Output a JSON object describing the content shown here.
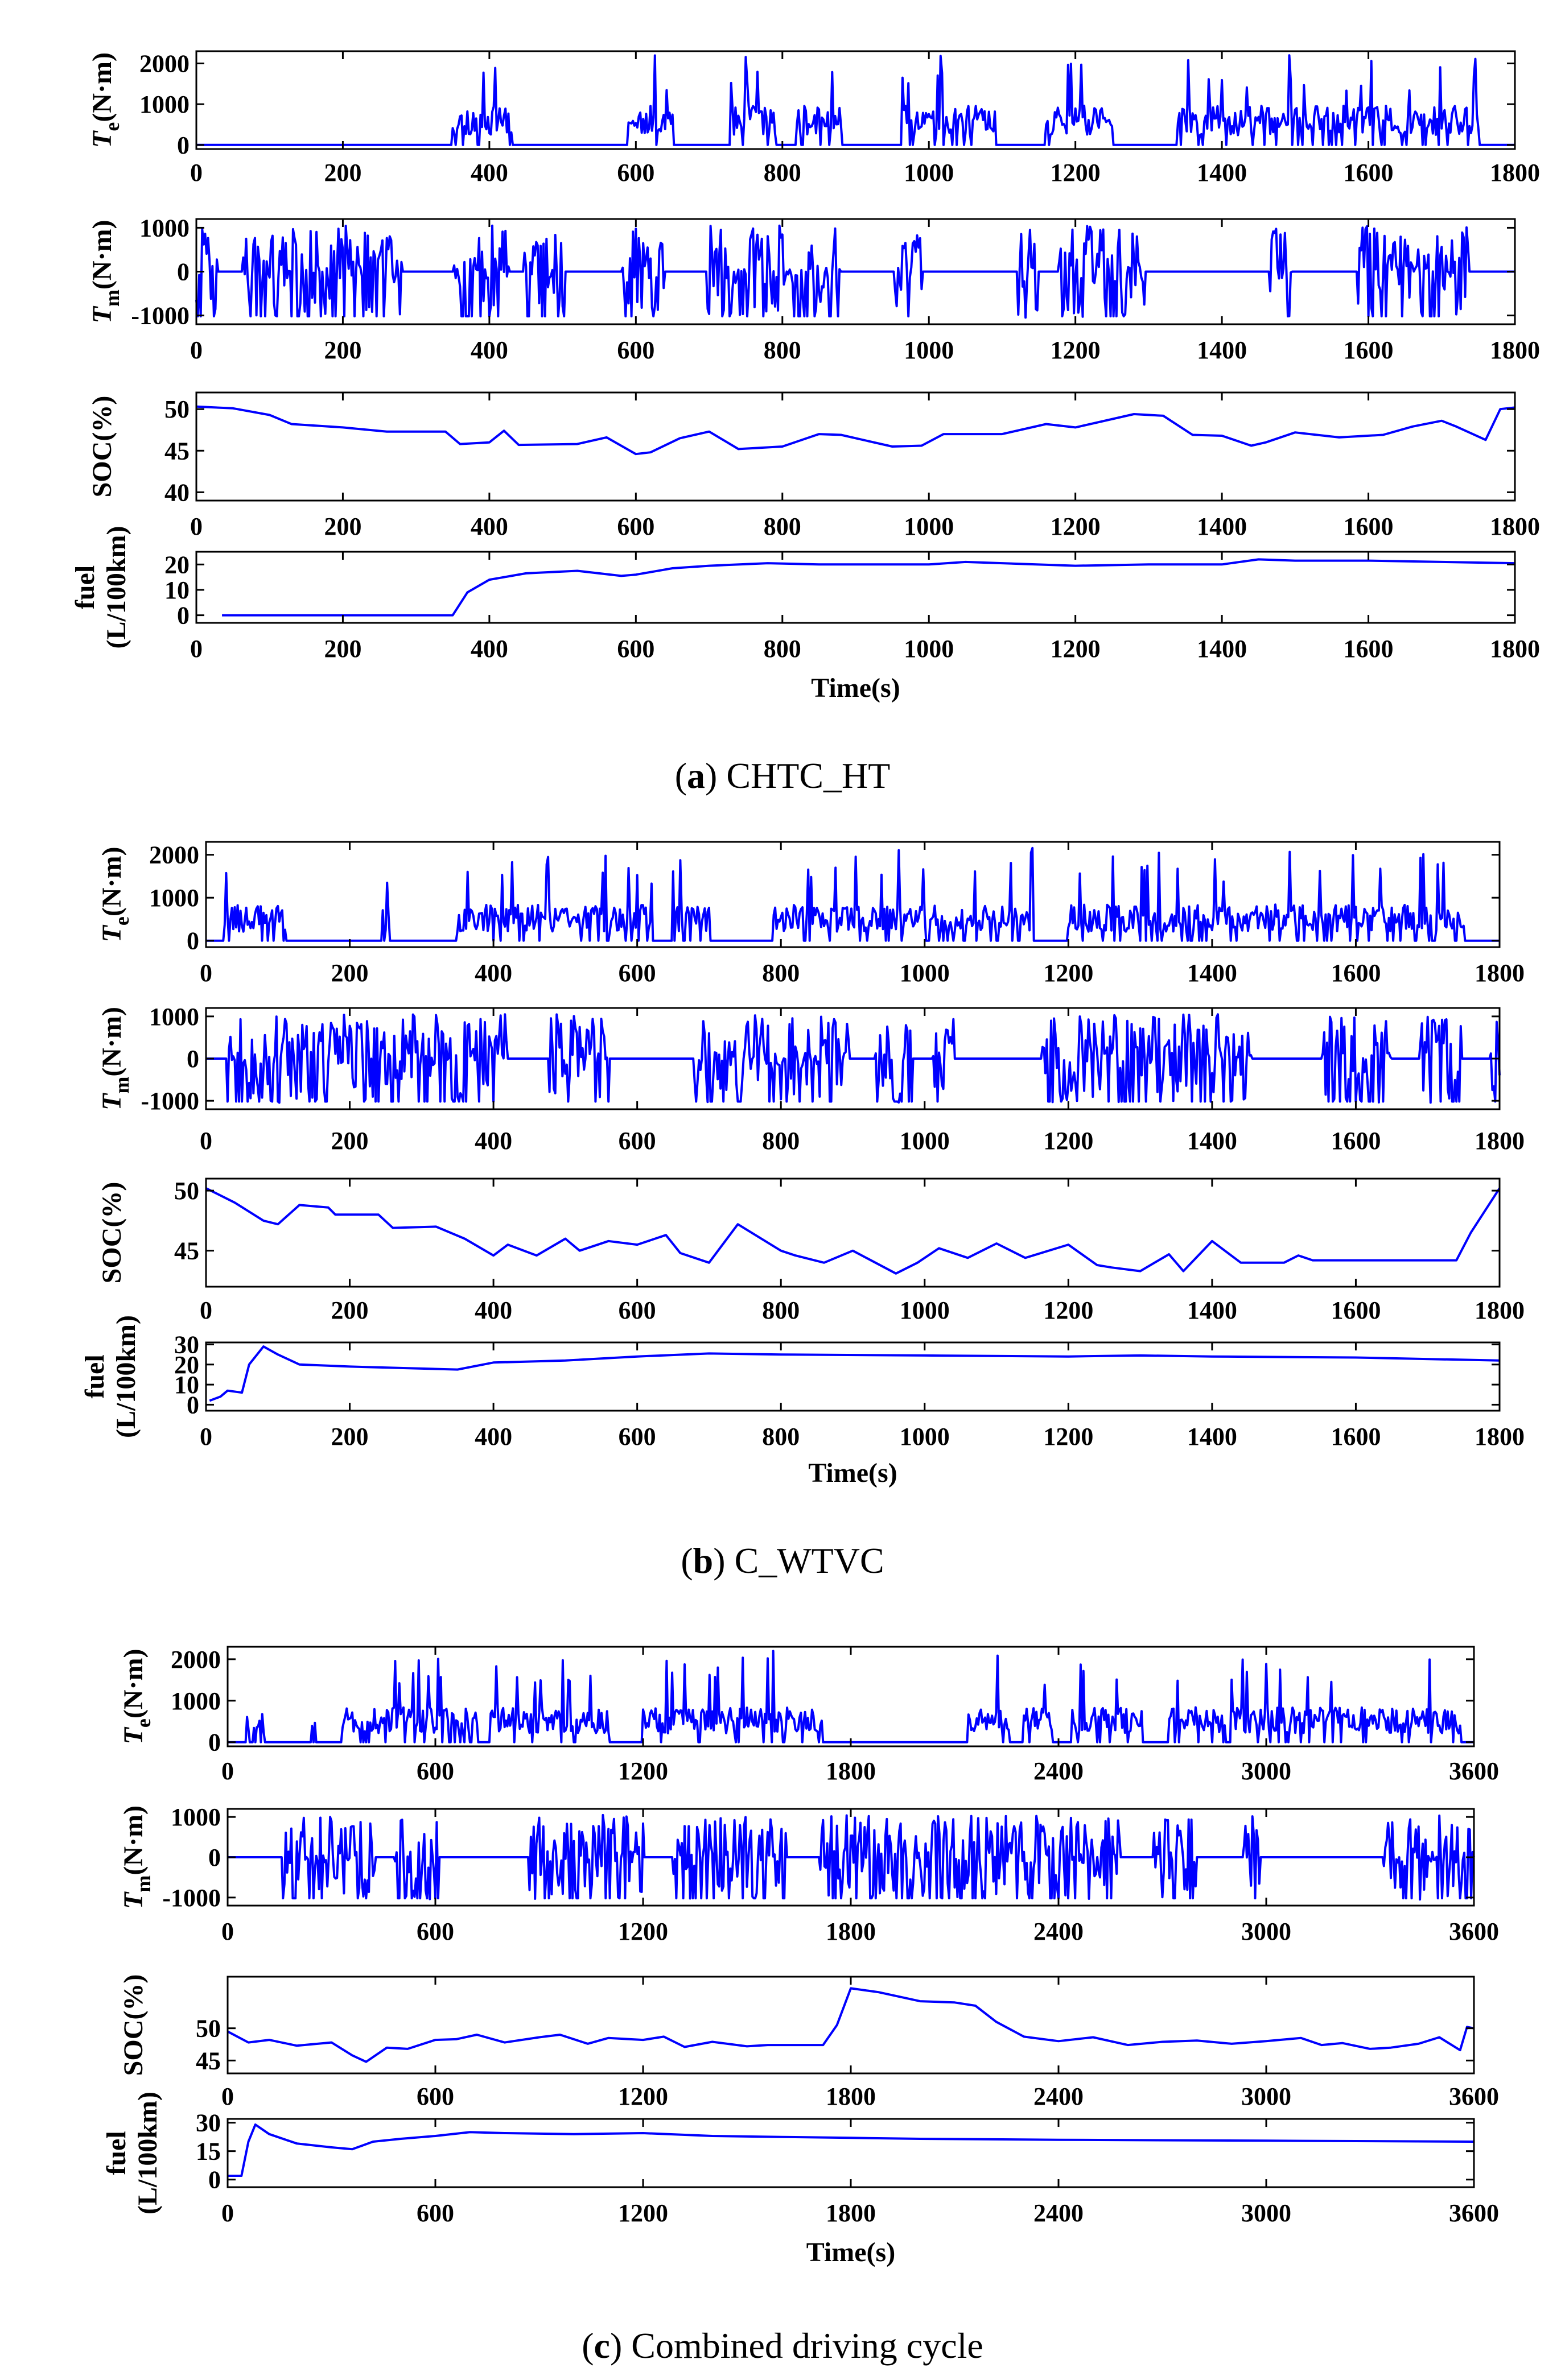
{
  "chart_data": [
    {
      "type": "line",
      "caption": {
        "letter": "a",
        "title": "CHTC_HT"
      },
      "xlabel": "Time(s)",
      "xlim": [
        0,
        1800
      ],
      "xticks": [
        0,
        200,
        400,
        600,
        800,
        1000,
        1200,
        1400,
        1600,
        1800
      ],
      "subplots": [
        {
          "id": "Te",
          "ylabel": "T",
          "ylabel_sub": "e",
          "ylabel_unit": "(N·m)",
          "ylim": [
            -100,
            2300
          ],
          "yticks": [
            0,
            1000,
            2000
          ],
          "series": [
            {
              "name": "Te",
              "pattern": "engine",
              "segments": [
                [
                  350,
                  430
                ],
                [
                  590,
                  650
                ],
                [
                  730,
                  790
                ],
                [
                  820,
                  880
                ],
                [
                  960,
                  1090
                ],
                [
                  1160,
                  1250
                ],
                [
                  1340,
                  1750
                ]
              ],
              "base": 0,
              "peak": 2200,
              "typical": 800,
              "seed": 11
            }
          ]
        },
        {
          "id": "Tm",
          "ylabel": "T",
          "ylabel_sub": "m",
          "ylabel_unit": "(N·m)",
          "ylim": [
            -1200,
            1200
          ],
          "yticks": [
            -1000,
            0,
            1000
          ],
          "series": [
            {
              "name": "Tm",
              "pattern": "motor",
              "peak": 1050,
              "seed": 23
            }
          ]
        },
        {
          "id": "SOC",
          "ylabel": "SOC(%)",
          "ylim": [
            39,
            52
          ],
          "yticks": [
            40,
            45,
            50
          ],
          "series": [
            {
              "name": "SOC",
              "pattern": "points",
              "x": [
                0,
                50,
                100,
                130,
                200,
                260,
                340,
                360,
                400,
                420,
                440,
                520,
                560,
                600,
                620,
                660,
                700,
                740,
                800,
                850,
                880,
                950,
                990,
                1020,
                1100,
                1160,
                1200,
                1280,
                1320,
                1360,
                1400,
                1440,
                1460,
                1500,
                1560,
                1620,
                1660,
                1700,
                1720,
                1760,
                1780,
                1800
              ],
              "y": [
                50.3,
                50.1,
                49.3,
                48.2,
                47.8,
                47.3,
                47.3,
                45.8,
                46.0,
                47.4,
                45.7,
                45.8,
                46.6,
                44.6,
                44.8,
                46.5,
                47.3,
                45.2,
                45.5,
                47.0,
                46.9,
                45.5,
                45.6,
                47.0,
                47.0,
                48.2,
                47.8,
                49.4,
                49.2,
                46.9,
                46.8,
                45.6,
                46.0,
                47.2,
                46.6,
                46.9,
                47.9,
                48.6,
                47.9,
                46.3,
                50.0,
                50.2
              ]
            }
          ]
        },
        {
          "id": "fuel",
          "ylabel": "fuel",
          "ylabel2": "(L/100km)",
          "ylim": [
            -3,
            25
          ],
          "yticks": [
            0,
            10,
            20
          ],
          "series": [
            {
              "name": "fuel",
              "pattern": "points",
              "x": [
                35,
                350,
                370,
                400,
                450,
                520,
                580,
                600,
                650,
                700,
                780,
                850,
                1000,
                1050,
                1200,
                1300,
                1400,
                1450,
                1500,
                1600,
                1700,
                1800
              ],
              "y": [
                0,
                0,
                9,
                14,
                16.5,
                17.5,
                15.5,
                16,
                18.5,
                19.5,
                20.5,
                20,
                20,
                21,
                19.5,
                20,
                20,
                22,
                21.5,
                21.5,
                21,
                20.5
              ]
            }
          ]
        }
      ]
    },
    {
      "type": "line",
      "caption": {
        "letter": "b",
        "title": "C_WTVC"
      },
      "xlabel": "Time(s)",
      "xlim": [
        0,
        1800
      ],
      "xticks": [
        0,
        200,
        400,
        600,
        800,
        1000,
        1200,
        1400,
        1600,
        1800
      ],
      "subplots": [
        {
          "id": "Te",
          "ylabel": "T",
          "ylabel_sub": "e",
          "ylabel_unit": "(N·m)",
          "ylim": [
            -150,
            2300
          ],
          "yticks": [
            0,
            1000,
            2000
          ],
          "series": [
            {
              "name": "Te",
              "pattern": "engine",
              "segments": [
                [
                  25,
                  110
                ],
                [
                  245,
                  255
                ],
                [
                  350,
                  620
                ],
                [
                  650,
                  700
                ],
                [
                  790,
                  1150
                ],
                [
                  1200,
                  1750
                ]
              ],
              "base": 0,
              "peak": 2200,
              "typical": 700,
              "seed": 37
            }
          ]
        },
        {
          "id": "Tm",
          "ylabel": "T",
          "ylabel_sub": "m",
          "ylabel_unit": "(N·m)",
          "ylim": [
            -1200,
            1200
          ],
          "yticks": [
            -1000,
            0,
            1000
          ],
          "series": [
            {
              "name": "Tm",
              "pattern": "motor",
              "peak": 1050,
              "seed": 41
            }
          ]
        },
        {
          "id": "SOC",
          "ylabel": "SOC(%)",
          "ylim": [
            42,
            51
          ],
          "yticks": [
            45,
            50
          ],
          "series": [
            {
              "name": "SOC",
              "pattern": "points",
              "x": [
                0,
                40,
                80,
                100,
                130,
                170,
                180,
                240,
                260,
                320,
                360,
                400,
                420,
                460,
                500,
                520,
                560,
                600,
                640,
                660,
                700,
                740,
                800,
                820,
                860,
                900,
                960,
                990,
                1020,
                1060,
                1100,
                1140,
                1200,
                1240,
                1260,
                1300,
                1340,
                1360,
                1400,
                1440,
                1500,
                1520,
                1540,
                1740,
                1760,
                1800
              ],
              "y": [
                50.2,
                49.0,
                47.5,
                47.2,
                48.8,
                48.6,
                48.0,
                48.0,
                46.9,
                47.0,
                46.0,
                44.6,
                45.5,
                44.6,
                46.0,
                45.0,
                45.8,
                45.5,
                46.3,
                44.8,
                44.0,
                47.2,
                45.0,
                44.6,
                44.0,
                45.0,
                43.1,
                44.0,
                45.2,
                44.4,
                45.6,
                44.4,
                45.5,
                43.8,
                43.6,
                43.3,
                44.7,
                43.3,
                45.8,
                44.0,
                44.0,
                44.6,
                44.2,
                44.2,
                46.5,
                50.2
              ]
            }
          ]
        },
        {
          "id": "fuel",
          "ylabel": "fuel",
          "ylabel2": "(L/100km)",
          "ylim": [
            -3,
            31
          ],
          "yticks": [
            0,
            10,
            20,
            30
          ],
          "series": [
            {
              "name": "fuel",
              "pattern": "points",
              "x": [
                5,
                20,
                30,
                50,
                60,
                80,
                100,
                130,
                200,
                300,
                350,
                400,
                500,
                600,
                700,
                800,
                1000,
                1200,
                1300,
                1400,
                1600,
                1800
              ],
              "y": [
                2,
                4,
                7,
                6,
                20,
                29,
                25,
                20,
                19,
                18,
                17.5,
                21,
                22,
                24,
                25.5,
                25,
                24.5,
                24,
                24.5,
                24,
                23.5,
                22
              ]
            }
          ]
        }
      ]
    },
    {
      "type": "line",
      "caption": {
        "letter": "c",
        "title": "Combined driving cycle"
      },
      "xlabel": "Time(s)",
      "xlim": [
        0,
        3600
      ],
      "xticks": [
        0,
        600,
        1200,
        1800,
        2400,
        3000,
        3600
      ],
      "subplots": [
        {
          "id": "Te",
          "ylabel": "T",
          "ylabel_sub": "e",
          "ylabel_unit": "(N·m)",
          "ylim": [
            -100,
            2300
          ],
          "yticks": [
            0,
            1000,
            2000
          ],
          "series": [
            {
              "name": "Te",
              "pattern": "engine",
              "segments": [
                [
                  50,
                  110
                ],
                [
                  240,
                  255
                ],
                [
                  330,
                  720
                ],
                [
                  760,
                  1100
                ],
                [
                  1200,
                  1720
                ],
                [
                  2140,
                  2260
                ],
                [
                  2300,
                  2380
                ],
                [
                  2440,
                  2640
                ],
                [
                  2720,
                  2880
                ],
                [
                  2900,
                  3560
                ]
              ],
              "base": 0,
              "peak": 2200,
              "typical": 700,
              "seed": 53
            }
          ]
        },
        {
          "id": "Tm",
          "ylabel": "T",
          "ylabel_sub": "m",
          "ylabel_unit": "(N·m)",
          "ylim": [
            -1200,
            1200
          ],
          "yticks": [
            -1000,
            0,
            1000
          ],
          "series": [
            {
              "name": "Tm",
              "pattern": "motor",
              "peak": 1050,
              "seed": 61
            }
          ]
        },
        {
          "id": "SOC",
          "ylabel": "SOC(%)",
          "ylim": [
            43,
            58
          ],
          "yticks": [
            45,
            50
          ],
          "series": [
            {
              "name": "SOC",
              "pattern": "points",
              "x": [
                0,
                60,
                120,
                200,
                300,
                360,
                400,
                460,
                520,
                600,
                660,
                720,
                800,
                900,
                960,
                1040,
                1100,
                1200,
                1260,
                1320,
                1400,
                1500,
                1560,
                1720,
                1760,
                1800,
                1880,
                2000,
                2100,
                2160,
                2220,
                2300,
                2400,
                2500,
                2600,
                2700,
                2800,
                2900,
                3000,
                3100,
                3160,
                3220,
                3300,
                3360,
                3440,
                3500,
                3560,
                3580,
                3600
              ],
              "y": [
                49.5,
                47.8,
                48.2,
                47.3,
                47.8,
                45.8,
                44.8,
                47.0,
                46.8,
                48.2,
                48.3,
                49.0,
                47.8,
                48.6,
                49.0,
                47.6,
                48.5,
                48.2,
                48.7,
                47.1,
                47.9,
                47.2,
                47.4,
                47.4,
                50.5,
                56.2,
                55.6,
                54.2,
                54.0,
                53.5,
                51.0,
                48.7,
                48.0,
                48.6,
                47.4,
                47.9,
                48.1,
                47.6,
                48.0,
                48.5,
                47.4,
                47.7,
                46.8,
                47.0,
                47.6,
                48.6,
                46.6,
                50.2,
                50.0
              ]
            }
          ]
        },
        {
          "id": "fuel",
          "ylabel": "fuel",
          "ylabel2": "(L/100km)",
          "ylim": [
            -4,
            32
          ],
          "yticks": [
            0,
            15,
            30
          ],
          "series": [
            {
              "name": "fuel",
              "pattern": "points",
              "x": [
                0,
                40,
                60,
                80,
                120,
                200,
                300,
                360,
                420,
                500,
                600,
                700,
                800,
                1000,
                1200,
                1400,
                1600,
                1800,
                2000,
                2400,
                3000,
                3600
              ],
              "y": [
                2,
                2,
                20,
                29,
                24,
                19,
                17,
                16,
                20,
                21.5,
                23,
                25,
                24.5,
                24,
                24.5,
                23,
                22.5,
                22,
                21.5,
                21,
                20.5,
                20
              ]
            }
          ]
        }
      ]
    }
  ]
}
